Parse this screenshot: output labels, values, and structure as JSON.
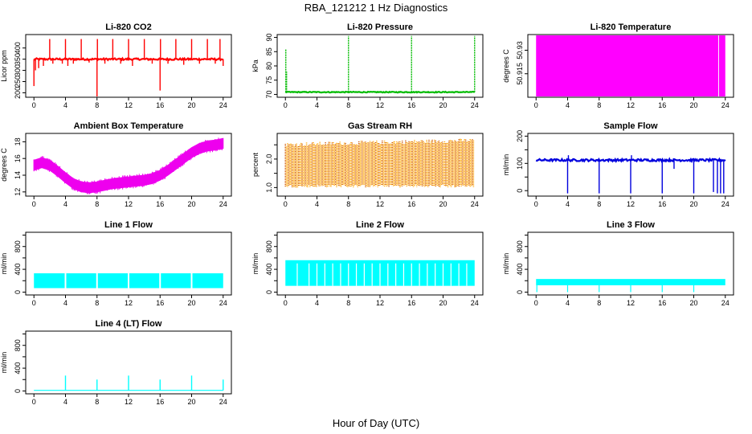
{
  "figure": {
    "title": "RBA_121212  1 Hz Diagnostics",
    "xlabel": "Hour of Day (UTC)"
  },
  "chart_data": [
    {
      "type": "line",
      "title": "Li-820 CO2",
      "ylabel": "Licor ppm",
      "color": "#ff0000",
      "xlim": [
        0,
        24
      ],
      "ylim": [
        180,
        460
      ],
      "xticks": [
        0,
        4,
        8,
        12,
        16,
        20,
        24
      ],
      "yticks": [
        200,
        250,
        300,
        350,
        400
      ],
      "baseline": 350,
      "band": 8,
      "spikes": [
        [
          0.0,
          230
        ],
        [
          0.2,
          300
        ],
        [
          0.6,
          310
        ],
        [
          1.2,
          320
        ],
        [
          2.0,
          440
        ],
        [
          2.4,
          330
        ],
        [
          3.6,
          330
        ],
        [
          4.0,
          440
        ],
        [
          4.3,
          320
        ],
        [
          5.0,
          330
        ],
        [
          6.0,
          440
        ],
        [
          7.0,
          335
        ],
        [
          8.0,
          180
        ],
        [
          8.05,
          440
        ],
        [
          9.0,
          330
        ],
        [
          10.0,
          440
        ],
        [
          11.0,
          330
        ],
        [
          12.0,
          440
        ],
        [
          12.5,
          320
        ],
        [
          14.0,
          440
        ],
        [
          15.0,
          330
        ],
        [
          16.0,
          210
        ],
        [
          16.05,
          440
        ],
        [
          17.0,
          330
        ],
        [
          18.0,
          440
        ],
        [
          19.0,
          325
        ],
        [
          20.0,
          440
        ],
        [
          21.0,
          330
        ],
        [
          22.0,
          440
        ],
        [
          23.0,
          330
        ],
        [
          23.6,
          440
        ],
        [
          24.0,
          320
        ]
      ]
    },
    {
      "type": "line",
      "title": "Li-820 Pressure",
      "ylabel": "kPa",
      "color": "#00bb00",
      "xlim": [
        0,
        24
      ],
      "ylim": [
        69,
        91
      ],
      "xticks": [
        0,
        4,
        8,
        12,
        16,
        20,
        24
      ],
      "yticks": [
        70,
        75,
        80,
        85,
        90
      ],
      "baseline": 70.8,
      "band": 0.3,
      "spikes": [
        [
          0.05,
          86
        ],
        [
          0.15,
          78
        ],
        [
          8.0,
          90.5
        ],
        [
          16.0,
          90.5
        ],
        [
          24.0,
          90.5
        ]
      ]
    },
    {
      "type": "area",
      "title": "Li-820 Temperature",
      "ylabel": "degrees C",
      "color": "#ff00ff",
      "xlim": [
        0,
        24
      ],
      "ylim": [
        50.9,
        50.94
      ],
      "xticks": [
        0,
        4,
        8,
        12,
        16,
        20,
        24
      ],
      "yticks": [
        50.915,
        50.93
      ],
      "fill_x": [
        0,
        24
      ],
      "gaps": [
        23.1,
        23.2
      ]
    },
    {
      "type": "line",
      "title": "Ambient Box Temperature",
      "ylabel": "degrees C",
      "color": "#ee00ee",
      "xlim": [
        0,
        24
      ],
      "ylim": [
        11.5,
        19
      ],
      "xticks": [
        0,
        4,
        8,
        12,
        16,
        20,
        24
      ],
      "yticks": [
        12,
        14,
        16,
        18
      ],
      "x": [
        0,
        1,
        2,
        3,
        4,
        5,
        6,
        7,
        8,
        9,
        10,
        11,
        12,
        13,
        14,
        15,
        16,
        17,
        18,
        19,
        20,
        21,
        22,
        23,
        24
      ],
      "y": [
        15.2,
        15.5,
        15.2,
        14.5,
        13.7,
        13.0,
        12.6,
        12.5,
        12.6,
        12.8,
        13.0,
        13.1,
        13.2,
        13.3,
        13.4,
        13.6,
        14.0,
        14.6,
        15.3,
        16.0,
        16.7,
        17.2,
        17.5,
        17.6,
        17.8
      ],
      "band": 0.6
    },
    {
      "type": "line",
      "title": "Gas Stream RH",
      "ylabel": "percent",
      "color": "#ffa500",
      "color2": "#cc5500",
      "xlim": [
        0,
        24
      ],
      "ylim": [
        0.7,
        2.9
      ],
      "xticks": [
        0,
        4,
        8,
        12,
        16,
        20,
        24
      ],
      "yticks": [
        1.0,
        1.5,
        2.0,
        2.5
      ],
      "ytick_labels": [
        "1.0",
        "",
        "2.0",
        ""
      ],
      "low": 1.05,
      "high_start": 2.5,
      "high_end": 2.65
    },
    {
      "type": "line",
      "title": "Sample Flow",
      "ylabel": "ml/min",
      "color": "#0000dd",
      "xlim": [
        0,
        24
      ],
      "ylim": [
        -20,
        210
      ],
      "xticks": [
        0,
        4,
        8,
        12,
        16,
        20,
        24
      ],
      "yticks": [
        0,
        50,
        100,
        150,
        200
      ],
      "ytick_labels": [
        "0",
        "",
        "100",
        "",
        "200"
      ],
      "baseline": 112,
      "band": 8,
      "spikes": [
        [
          4.0,
          -10
        ],
        [
          4.1,
          130
        ],
        [
          8.0,
          -10
        ],
        [
          12.0,
          -10
        ],
        [
          12.1,
          130
        ],
        [
          16.0,
          -10
        ],
        [
          17.5,
          80
        ],
        [
          20.0,
          -10
        ],
        [
          22.5,
          -5
        ],
        [
          23.0,
          -10
        ],
        [
          23.4,
          -10
        ],
        [
          23.8,
          -10
        ]
      ]
    },
    {
      "type": "area",
      "title": "Line 1 Flow",
      "ylabel": "ml/min",
      "color": "#00ffff",
      "xlim": [
        0,
        24
      ],
      "ylim": [
        -50,
        1050
      ],
      "xticks": [
        0,
        4,
        8,
        12,
        16,
        20,
        24
      ],
      "yticks": [
        0,
        200,
        400,
        600,
        800,
        1000
      ],
      "ytick_labels": [
        "0",
        "",
        "400",
        "",
        "800",
        ""
      ],
      "low": 70,
      "high": 330,
      "gaps": [
        3.9,
        4.1,
        7.9,
        8.1,
        11.9,
        12.1,
        15.9,
        16.1,
        19.9,
        20.1
      ]
    },
    {
      "type": "area",
      "title": "Line 2 Flow",
      "ylabel": "ml/min",
      "color": "#00ffff",
      "xlim": [
        0,
        24
      ],
      "ylim": [
        -50,
        1050
      ],
      "xticks": [
        0,
        4,
        8,
        12,
        16,
        20,
        24
      ],
      "yticks": [
        0,
        200,
        400,
        600,
        800,
        1000
      ],
      "ytick_labels": [
        "0",
        "",
        "400",
        "",
        "800",
        ""
      ],
      "low": 110,
      "high": 560,
      "gaps": [
        1.5,
        3.0,
        4.0,
        5.0,
        6.0,
        7.0,
        8.0,
        9.0,
        10.0,
        11.0,
        12.0,
        13.0,
        14.0,
        15.0,
        16.0,
        17.0,
        18.0,
        19.0,
        20.0,
        21.0,
        22.0,
        23.0
      ]
    },
    {
      "type": "area",
      "title": "Line 3 Flow",
      "ylabel": "ml/min",
      "color": "#00ffff",
      "xlim": [
        0,
        24
      ],
      "ylim": [
        -50,
        1050
      ],
      "xticks": [
        0,
        4,
        8,
        12,
        16,
        20,
        24
      ],
      "yticks": [
        0,
        200,
        400,
        600,
        800,
        1000
      ],
      "ytick_labels": [
        "0",
        "",
        "400",
        "",
        "800",
        ""
      ],
      "low": 120,
      "high": 230,
      "dips": [
        0.1,
        4.0,
        8.0,
        12.0,
        16.0,
        20.0
      ]
    },
    {
      "type": "line",
      "title": "Line 4 (LT) Flow",
      "ylabel": "ml/min",
      "color": "#00ffff",
      "xlim": [
        0,
        24
      ],
      "ylim": [
        -50,
        1050
      ],
      "xticks": [
        0,
        4,
        8,
        12,
        16,
        20,
        24
      ],
      "yticks": [
        0,
        200,
        400,
        600,
        800,
        1000
      ],
      "ytick_labels": [
        "0",
        "",
        "400",
        "",
        "800",
        ""
      ],
      "baseline": 10,
      "spikes": [
        [
          4.0,
          270
        ],
        [
          8.0,
          200
        ],
        [
          12.0,
          270
        ],
        [
          16.0,
          200
        ],
        [
          20.0,
          270
        ],
        [
          24.0,
          200
        ]
      ]
    }
  ]
}
